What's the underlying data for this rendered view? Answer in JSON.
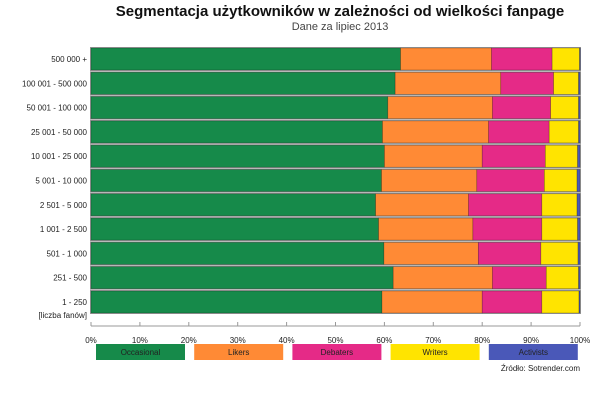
{
  "chart_data": {
    "type": "bar",
    "orientation": "horizontal",
    "stacked": "percent",
    "title": "Segmentacja użytkowników w zależności od wielkości fanpage",
    "subtitle": "Dane za lipiec 2013",
    "ylabel": "[liczba fanów]",
    "xlabel": "",
    "xlim": [
      0,
      100
    ],
    "xticks": [
      "0%",
      "10%",
      "20%",
      "30%",
      "40%",
      "50%",
      "60%",
      "70%",
      "80%",
      "90%",
      "100%"
    ],
    "categories": [
      "500 000 +",
      "100 001 - 500 000",
      "50 001 - 100 000",
      "25 001 - 50 000",
      "10 001 - 25 000",
      "5 001 - 10 000",
      "2 501 - 5 000",
      "1 001 - 2 500",
      "501 - 1 000",
      "251 - 500",
      "1 - 250"
    ],
    "series": [
      {
        "name": "Occasional",
        "color": "#168a4a",
        "values": [
          63.3,
          62.2,
          60.7,
          59.6,
          60.0,
          59.4,
          58.2,
          58.8,
          59.9,
          61.8,
          59.5
        ]
      },
      {
        "name": "Likers",
        "color": "#ff8a35",
        "values": [
          18.6,
          21.6,
          21.4,
          21.7,
          20.0,
          19.5,
          19.0,
          19.3,
          19.3,
          20.3,
          20.5
        ]
      },
      {
        "name": "Debaters",
        "color": "#e52a87",
        "values": [
          12.4,
          10.8,
          11.9,
          12.4,
          12.9,
          13.8,
          15.0,
          14.1,
          12.8,
          11.0,
          12.2
        ]
      },
      {
        "name": "Writers",
        "color": "#ffe400",
        "values": [
          5.6,
          5.1,
          5.7,
          6.0,
          6.6,
          6.7,
          7.2,
          7.3,
          7.6,
          6.6,
          7.6
        ]
      },
      {
        "name": "Activists",
        "color": "#4a58b8",
        "values": [
          0.1,
          0.3,
          0.3,
          0.3,
          0.5,
          0.6,
          0.6,
          0.5,
          0.4,
          0.3,
          0.2
        ]
      }
    ],
    "legend": "bottom",
    "grid": false,
    "source": "Źródło: Sotrender.com"
  }
}
